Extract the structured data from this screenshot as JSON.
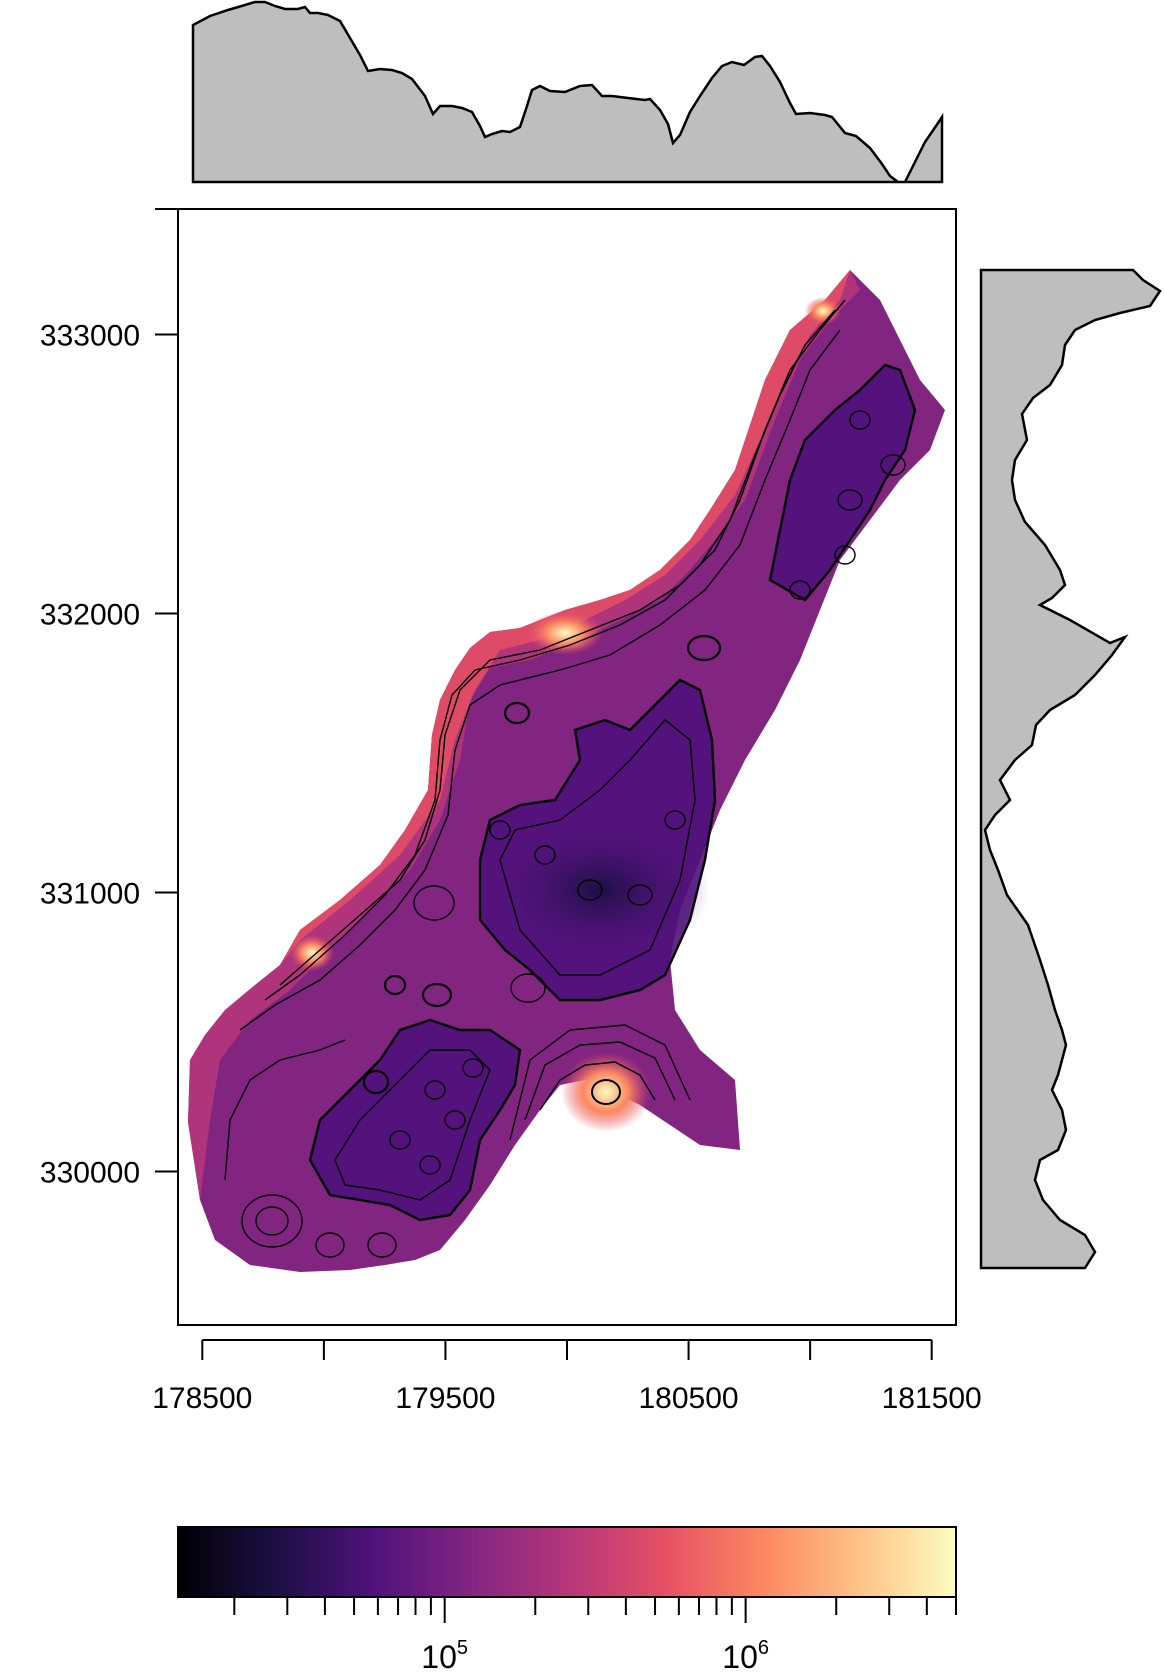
{
  "chart_data": {
    "type": "heatmap",
    "title": "",
    "xlabel": "",
    "ylabel": "",
    "x_ticks": [
      178500,
      179500,
      180500,
      181500
    ],
    "y_ticks": [
      330000,
      331000,
      332000,
      333000
    ],
    "xlim": [
      178400,
      181600
    ],
    "ylim": [
      329450,
      333450
    ],
    "grid": false,
    "contours": true,
    "marginal_density": {
      "top": "x",
      "right": "y",
      "fill": "#bebebe"
    },
    "colorbar": {
      "placement": "bottom",
      "scale": "log",
      "range": [
        13000,
        5000000
      ],
      "labels": [
        {
          "base": "10",
          "exp": "5",
          "value": 100000
        },
        {
          "base": "10",
          "exp": "6",
          "value": 1000000
        }
      ],
      "colors": [
        "#000004",
        "#1c1044",
        "#4f127b",
        "#812581",
        "#b5367a",
        "#e55064",
        "#fb8761",
        "#fec287",
        "#fcfdbf"
      ]
    }
  }
}
